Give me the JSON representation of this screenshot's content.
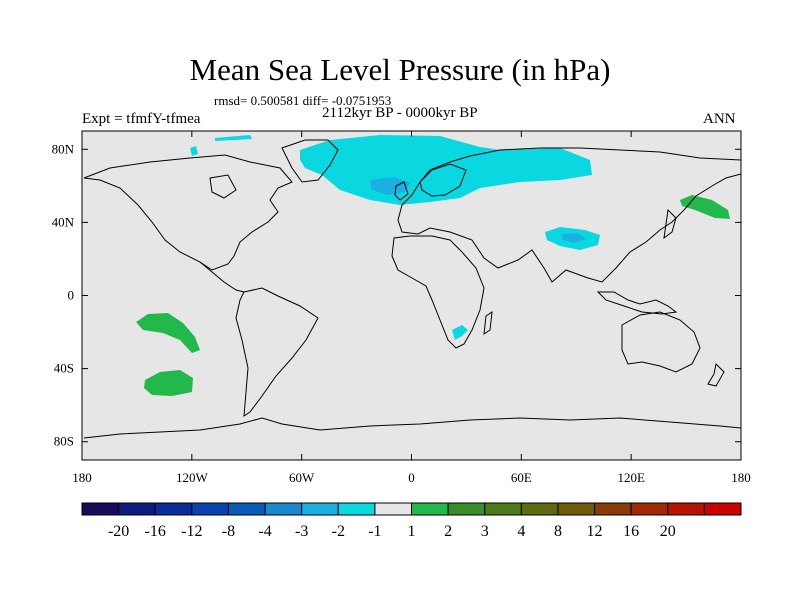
{
  "title": "Mean Sea Level Pressure (in hPa)",
  "stats": "rmsd= 0.500581 diff= -0.0751953",
  "period": "2112kyr BP - 0000kyr BP",
  "experiment": "Expt = tfmfY-tfmea",
  "season": "ANN",
  "map": {
    "lon_range": [
      -180,
      180
    ],
    "lat_range": [
      -90,
      90
    ],
    "background_color": "#e6e6e6",
    "lat_ticks": [
      {
        "value": 80,
        "label": "80N"
      },
      {
        "value": 40,
        "label": "40N"
      },
      {
        "value": 0,
        "label": "0"
      },
      {
        "value": -40,
        "label": "40S"
      },
      {
        "value": -80,
        "label": "80S"
      }
    ],
    "lon_ticks": [
      {
        "value": -180,
        "label": "180"
      },
      {
        "value": -120,
        "label": "120W"
      },
      {
        "value": -60,
        "label": "60W"
      },
      {
        "value": 0,
        "label": "0"
      },
      {
        "value": 60,
        "label": "60E"
      },
      {
        "value": 120,
        "label": "120E"
      },
      {
        "value": 180,
        "label": "180"
      }
    ]
  },
  "colorbar": {
    "colors": [
      "#1a0a5a",
      "#0d1a80",
      "#0a2d9c",
      "#0a43ad",
      "#0a5ab8",
      "#1a88d0",
      "#1ab0e0",
      "#0ad8e0",
      "#e6e6e6",
      "#22b84a",
      "#3a8e2a",
      "#4e7a18",
      "#5e6a10",
      "#6e5a08",
      "#8a3c06",
      "#a02804",
      "#b81402",
      "#cc0202"
    ],
    "labels": [
      "-20",
      "-16",
      "-12",
      "-8",
      "-4",
      "-3",
      "-2",
      "-1",
      "1",
      "2",
      "3",
      "4",
      "8",
      "12",
      "16",
      "20"
    ]
  },
  "anomalies": [
    {
      "name": "arctic-negative-anomaly",
      "color": "#0ad8e0"
    },
    {
      "name": "scandinavia-negative-core",
      "color": "#1ab0e0"
    },
    {
      "name": "tibet-negative-anomaly",
      "color": "#0ad8e0"
    },
    {
      "name": "tibet-negative-core",
      "color": "#1ab0e0"
    },
    {
      "name": "southern-africa-negative-anomaly",
      "color": "#0ad8e0"
    },
    {
      "name": "kamchatka-positive-anomaly",
      "color": "#22b84a"
    },
    {
      "name": "south-pacific-positive-anomaly-north",
      "color": "#22b84a"
    },
    {
      "name": "south-pacific-positive-anomaly-south",
      "color": "#22b84a"
    }
  ]
}
